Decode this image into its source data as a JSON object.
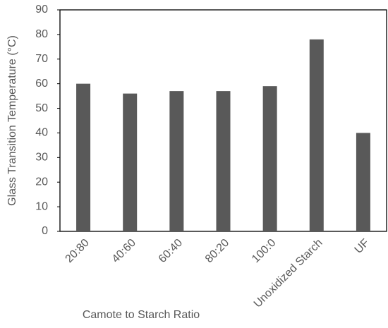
{
  "chart_data": {
    "type": "bar",
    "x_label": "Camote to Starch Ratio",
    "y_label": "Glass Transition Temperature (°C)",
    "categories": [
      "20:80",
      "40:60",
      "60:40",
      "80:20",
      "100:0",
      "Unoxidized Starch",
      "UF"
    ],
    "values": [
      60,
      56,
      57,
      57,
      59,
      78,
      40
    ],
    "color": "#595959",
    "ylim": [
      0,
      90
    ],
    "yticks": [
      0,
      10,
      20,
      30,
      40,
      50,
      60,
      70,
      80,
      90
    ]
  }
}
